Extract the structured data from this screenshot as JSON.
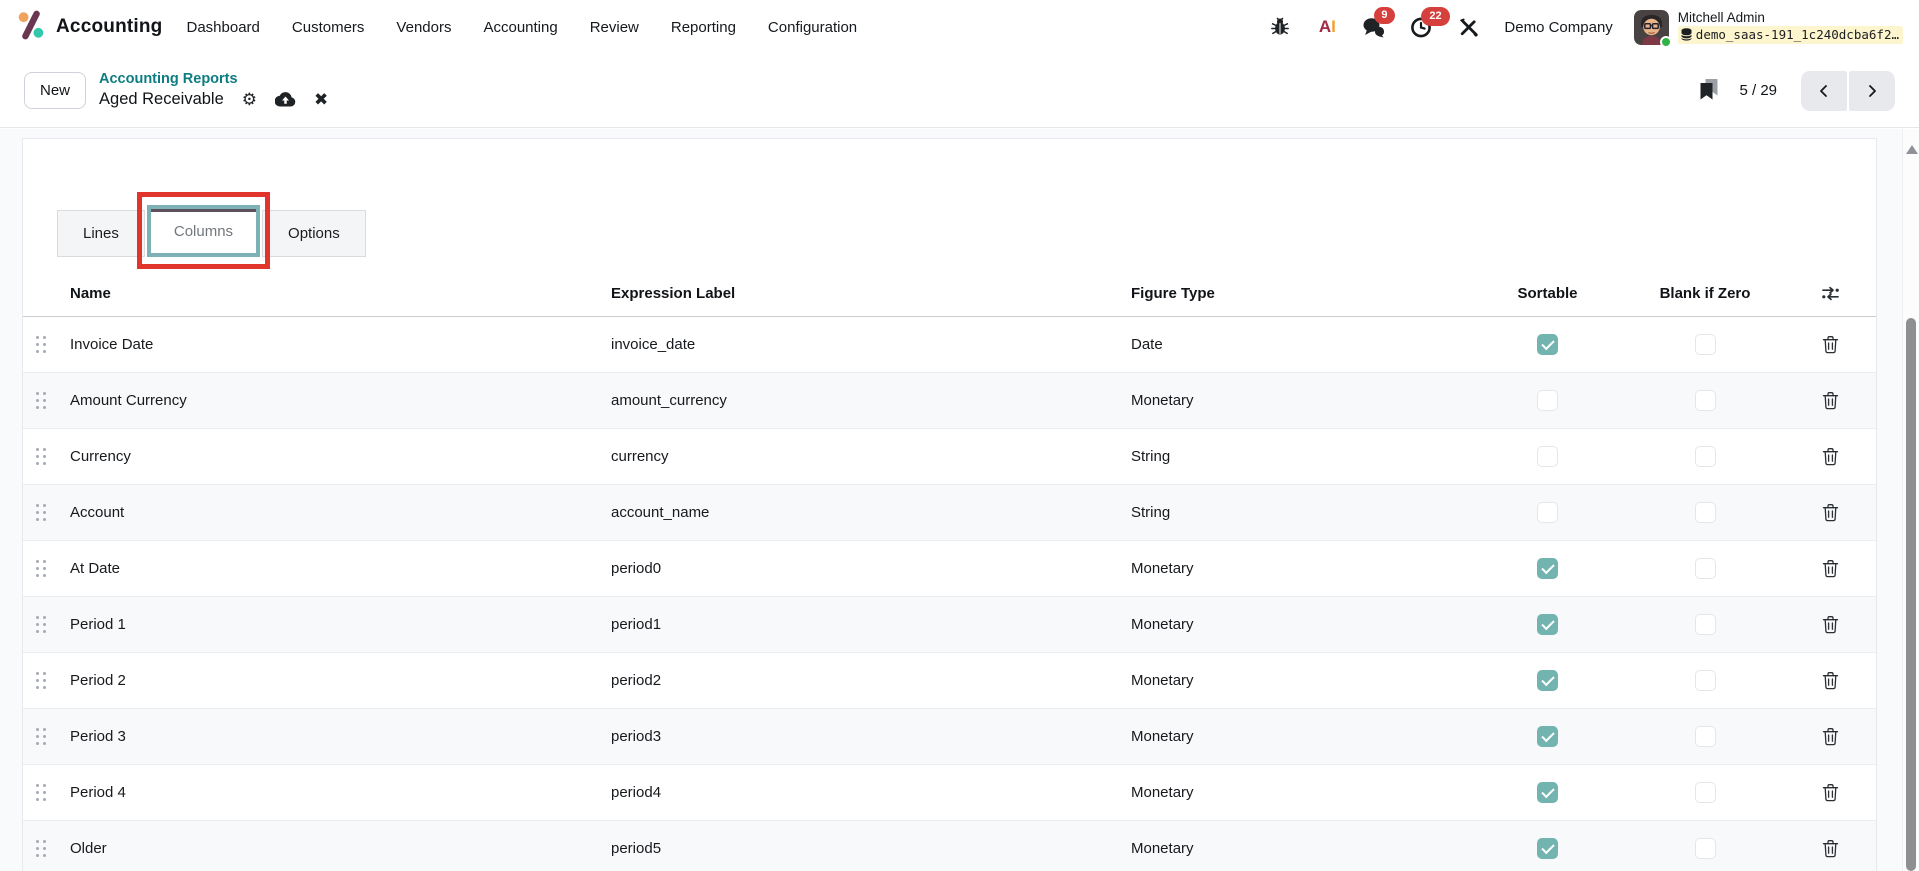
{
  "navbar": {
    "app_name": "Accounting",
    "menu_items": [
      "Dashboard",
      "Customers",
      "Vendors",
      "Accounting",
      "Review",
      "Reporting",
      "Configuration"
    ],
    "message_badge": "9",
    "activity_badge": "22",
    "company": "Demo Company",
    "user_name": "Mitchell Admin",
    "database": "demo_saas-191_1c240dcba6f2…"
  },
  "control_panel": {
    "new_button": "New",
    "breadcrumb_parent": "Accounting Reports",
    "breadcrumb_current": "Aged Receivable",
    "gear_glyph": "⚙",
    "close_glyph": "✖",
    "pager_value": "5 / 29"
  },
  "tabs": [
    {
      "label": "Lines",
      "active": false
    },
    {
      "label": "Columns",
      "active": true
    },
    {
      "label": "Options",
      "active": false
    }
  ],
  "table": {
    "headers": {
      "name": "Name",
      "expression_label": "Expression Label",
      "figure_type": "Figure Type",
      "sortable": "Sortable",
      "blank_if_zero": "Blank if Zero"
    },
    "rows": [
      {
        "name": "Invoice Date",
        "expression_label": "invoice_date",
        "figure_type": "Date",
        "sortable": true,
        "blank_if_zero": false
      },
      {
        "name": "Amount Currency",
        "expression_label": "amount_currency",
        "figure_type": "Monetary",
        "sortable": false,
        "blank_if_zero": false
      },
      {
        "name": "Currency",
        "expression_label": "currency",
        "figure_type": "String",
        "sortable": false,
        "blank_if_zero": false
      },
      {
        "name": "Account",
        "expression_label": "account_name",
        "figure_type": "String",
        "sortable": false,
        "blank_if_zero": false
      },
      {
        "name": "At Date",
        "expression_label": "period0",
        "figure_type": "Monetary",
        "sortable": true,
        "blank_if_zero": false
      },
      {
        "name": "Period 1",
        "expression_label": "period1",
        "figure_type": "Monetary",
        "sortable": true,
        "blank_if_zero": false
      },
      {
        "name": "Period 2",
        "expression_label": "period2",
        "figure_type": "Monetary",
        "sortable": true,
        "blank_if_zero": false
      },
      {
        "name": "Period 3",
        "expression_label": "period3",
        "figure_type": "Monetary",
        "sortable": true,
        "blank_if_zero": false
      },
      {
        "name": "Period 4",
        "expression_label": "period4",
        "figure_type": "Monetary",
        "sortable": true,
        "blank_if_zero": false
      },
      {
        "name": "Older",
        "expression_label": "period5",
        "figure_type": "Monetary",
        "sortable": true,
        "blank_if_zero": false
      }
    ]
  },
  "colors": {
    "link_teal": "#0e7d82",
    "checkbox_teal": "#73b4b0",
    "badge_red": "#d5403c",
    "annotation_red": "#e0342c",
    "db_highlight_yellow": "#fdf5cd",
    "logo_orange": "#f1a25c",
    "logo_plum": "#6b3750",
    "logo_teal": "#35c7ac"
  }
}
